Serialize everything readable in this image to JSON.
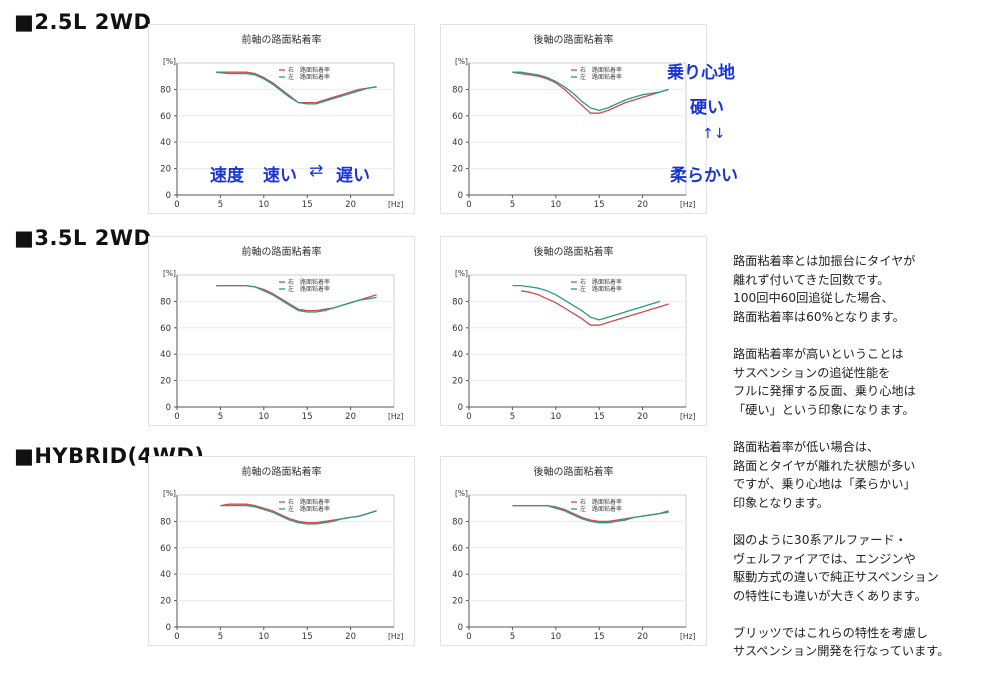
{
  "colors": {
    "right_series": "#d24a4a",
    "left_series": "#2a9a86",
    "accent": "#1a35d6"
  },
  "sections": [
    {
      "title": "■2.5L 2WD"
    },
    {
      "title": "■3.5L 2WD"
    },
    {
      "title": "■HYBRID(4WD)"
    }
  ],
  "annotations": {
    "speed": "速度",
    "fast": "速い",
    "arrow_lr": "⇄",
    "slow": "遅い",
    "ride": "乗り心地",
    "hard": "硬い",
    "arrow_ud": "↑↓",
    "soft": "柔らかい"
  },
  "description": {
    "paragraphs": [
      [
        "路面粘着率とは加振台にタイヤが",
        "離れず付いてきた回数です。",
        "100回中60回追従した場合、",
        "路面粘着率は60%となります。"
      ],
      [
        "路面粘着率が高いということは",
        "サスペンションの追従性能を",
        "フルに発揮する反面、乗り心地は",
        "「硬い」という印象になります。"
      ],
      [
        "路面粘着率が低い場合は、",
        "路面とタイヤが離れた状態が多い",
        "ですが、乗り心地は「柔らかい」",
        "印象となります。"
      ],
      [
        "図のように30系アルファード・",
        "ヴェルファイアでは、エンジンや",
        "駆動方式の違いで純正サスペンション",
        "の特性にも違いが大きくあります。"
      ],
      [
        "ブリッツではこれらの特性を考慮し",
        "サスペンション開発を行なっています。"
      ]
    ]
  },
  "chart_data": [
    {
      "type": "line",
      "title": "前軸の路面粘着率",
      "xlabel": "[Hz]",
      "ylabel": "[%]",
      "xlim": [
        0,
        25
      ],
      "ylim": [
        0,
        100
      ],
      "xticks": [
        0,
        5,
        10,
        15,
        20
      ],
      "yticks": [
        0,
        20,
        40,
        60,
        80
      ],
      "legend_position": "top-center",
      "series": [
        {
          "name": "右　路面粘着率",
          "color": "#d24a4a",
          "x": [
            4.5,
            6,
            7,
            8,
            9,
            10,
            11,
            12,
            13,
            14,
            15,
            16,
            17,
            18,
            19,
            20,
            21,
            22,
            23
          ],
          "y": [
            93,
            93,
            93,
            93,
            92,
            89,
            85,
            80,
            75,
            70,
            70,
            70,
            72,
            74,
            76,
            78,
            80,
            81,
            82
          ]
        },
        {
          "name": "左　路面粘着率",
          "color": "#2a9a86",
          "x": [
            4.5,
            6,
            7,
            8,
            9,
            10,
            11,
            12,
            13,
            14,
            15,
            16,
            17,
            18,
            19,
            20,
            21,
            22,
            23
          ],
          "y": [
            93,
            92,
            92,
            92,
            91,
            88,
            84,
            79,
            74,
            70,
            69,
            69,
            71,
            73,
            75,
            77,
            79,
            81,
            82
          ]
        }
      ]
    },
    {
      "type": "line",
      "title": "後軸の路面粘着率",
      "xlabel": "[Hz]",
      "ylabel": "[%]",
      "xlim": [
        0,
        25
      ],
      "ylim": [
        0,
        100
      ],
      "xticks": [
        0,
        5,
        10,
        15,
        20
      ],
      "yticks": [
        0,
        20,
        40,
        60,
        80
      ],
      "legend_position": "top-center",
      "series": [
        {
          "name": "右　路面粘着率",
          "color": "#d24a4a",
          "x": [
            5,
            6,
            7,
            8,
            9,
            10,
            11,
            12,
            13,
            14,
            15,
            16,
            17,
            18,
            19,
            20,
            21,
            22,
            23
          ],
          "y": [
            93,
            92,
            91,
            90,
            88,
            85,
            80,
            74,
            68,
            62,
            62,
            64,
            67,
            70,
            72,
            74,
            76,
            78,
            80
          ]
        },
        {
          "name": "左　路面粘着率",
          "color": "#2a9a86",
          "x": [
            5,
            6,
            7,
            8,
            9,
            10,
            11,
            12,
            13,
            14,
            15,
            16,
            17,
            18,
            19,
            20,
            21,
            22,
            23
          ],
          "y": [
            93,
            93,
            92,
            91,
            89,
            86,
            82,
            77,
            71,
            66,
            64,
            66,
            69,
            72,
            74,
            76,
            77,
            78,
            80
          ]
        }
      ]
    },
    {
      "type": "line",
      "title": "前軸の路面粘着率",
      "xlabel": "[Hz]",
      "ylabel": "[%]",
      "xlim": [
        0,
        25
      ],
      "ylim": [
        0,
        100
      ],
      "xticks": [
        0,
        5,
        10,
        15,
        20
      ],
      "yticks": [
        0,
        20,
        40,
        60,
        80
      ],
      "legend_position": "top-center",
      "series": [
        {
          "name": "右　路面粘着率",
          "color": "#d24a4a",
          "x": [
            4.5,
            6,
            7,
            8,
            9,
            10,
            11,
            12,
            13,
            14,
            15,
            16,
            17,
            18,
            19,
            20,
            21,
            22,
            23
          ],
          "y": [
            92,
            92,
            92,
            92,
            91,
            89,
            86,
            82,
            78,
            74,
            73,
            73,
            74,
            75,
            77,
            79,
            81,
            83,
            85
          ]
        },
        {
          "name": "左　路面粘着率",
          "color": "#2a9a86",
          "x": [
            4.5,
            6,
            7,
            8,
            9,
            10,
            11,
            12,
            13,
            14,
            15,
            16,
            17,
            18,
            19,
            20,
            21,
            22,
            23
          ],
          "y": [
            92,
            92,
            92,
            92,
            91,
            88,
            85,
            81,
            77,
            73,
            72,
            72,
            73,
            75,
            77,
            79,
            81,
            82,
            83
          ]
        }
      ]
    },
    {
      "type": "line",
      "title": "後軸の路面粘着率",
      "xlabel": "[Hz]",
      "ylabel": "[%]",
      "xlim": [
        0,
        25
      ],
      "ylim": [
        0,
        100
      ],
      "xticks": [
        0,
        5,
        10,
        15,
        20
      ],
      "yticks": [
        0,
        20,
        40,
        60,
        80
      ],
      "legend_position": "top-center",
      "series": [
        {
          "name": "右　路面粘着率",
          "color": "#d24a4a",
          "x": [
            6,
            7,
            8,
            9,
            10,
            11,
            12,
            13,
            14,
            15,
            16,
            17,
            18,
            19,
            20,
            21,
            22,
            23
          ],
          "y": [
            88,
            87,
            85,
            82,
            79,
            75,
            71,
            67,
            62,
            62,
            64,
            66,
            68,
            70,
            72,
            74,
            76,
            78
          ]
        },
        {
          "name": "左　路面粘着率",
          "color": "#2a9a86",
          "x": [
            5,
            6,
            7,
            8,
            9,
            10,
            11,
            12,
            13,
            14,
            15,
            16,
            17,
            18,
            19,
            20,
            21,
            22
          ],
          "y": [
            92,
            92,
            91,
            90,
            88,
            85,
            81,
            77,
            73,
            68,
            66,
            68,
            70,
            72,
            74,
            76,
            78,
            80
          ]
        }
      ]
    },
    {
      "type": "line",
      "title": "前軸の路面粘着率",
      "xlabel": "[Hz]",
      "ylabel": "[%]",
      "xlim": [
        0,
        25
      ],
      "ylim": [
        0,
        100
      ],
      "xticks": [
        0,
        5,
        10,
        15,
        20
      ],
      "yticks": [
        0,
        20,
        40,
        60,
        80
      ],
      "legend_position": "top-center",
      "series": [
        {
          "name": "右　路面粘着率",
          "color": "#d24a4a",
          "x": [
            5,
            6,
            7,
            8,
            9,
            10,
            11,
            12,
            13,
            14,
            15,
            16,
            17,
            18,
            19,
            20,
            21,
            22,
            23
          ],
          "y": [
            92,
            93,
            93,
            93,
            92,
            90,
            88,
            85,
            82,
            80,
            79,
            79,
            80,
            81,
            82,
            83,
            84,
            86,
            88
          ]
        },
        {
          "name": "左　路面粘着率",
          "color": "#2a9a86",
          "x": [
            5,
            6,
            7,
            8,
            9,
            10,
            11,
            12,
            13,
            14,
            15,
            16,
            17,
            18,
            19,
            20,
            21,
            22,
            23
          ],
          "y": [
            92,
            92,
            92,
            92,
            91,
            89,
            87,
            84,
            81,
            79,
            78,
            78,
            79,
            80,
            82,
            83,
            84,
            86,
            88
          ]
        }
      ]
    },
    {
      "type": "line",
      "title": "後軸の路面粘着率",
      "xlabel": "[Hz]",
      "ylabel": "[%]",
      "xlim": [
        0,
        25
      ],
      "ylim": [
        0,
        100
      ],
      "xticks": [
        0,
        5,
        10,
        15,
        20
      ],
      "yticks": [
        0,
        20,
        40,
        60,
        80
      ],
      "legend_position": "top-center",
      "series": [
        {
          "name": "右　路面粘着率",
          "color": "#d24a4a",
          "x": [
            5,
            6,
            7,
            8,
            9,
            10,
            11,
            12,
            13,
            14,
            15,
            16,
            17,
            18,
            19,
            20,
            21,
            22,
            23
          ],
          "y": [
            92,
            92,
            92,
            92,
            92,
            91,
            89,
            86,
            83,
            81,
            80,
            80,
            81,
            82,
            83,
            84,
            85,
            86,
            88
          ]
        },
        {
          "name": "左　路面粘着率",
          "color": "#2a9a86",
          "x": [
            5,
            6,
            7,
            8,
            9,
            10,
            11,
            12,
            13,
            14,
            15,
            16,
            17,
            18,
            19,
            20,
            21,
            22,
            23
          ],
          "y": [
            92,
            92,
            92,
            92,
            92,
            90,
            88,
            85,
            82,
            80,
            79,
            79,
            80,
            81,
            83,
            84,
            85,
            86,
            87
          ]
        }
      ]
    }
  ]
}
